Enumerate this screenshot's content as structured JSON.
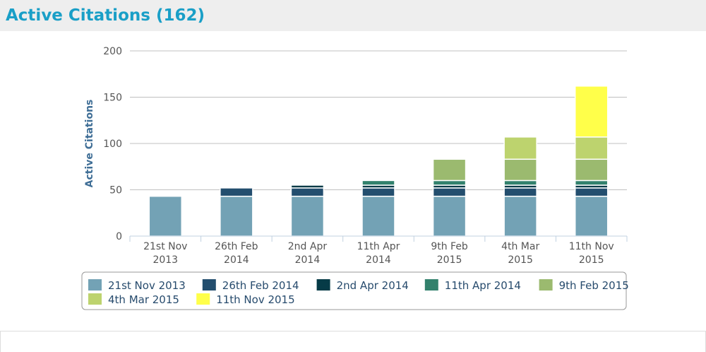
{
  "header": {
    "title": "Active Citations (162)"
  },
  "chart_data": {
    "type": "bar",
    "stacked": true,
    "ylabel": "Active Citations",
    "ylim": [
      0,
      200
    ],
    "yticks": [
      0,
      50,
      100,
      150,
      200
    ],
    "grid": true,
    "legend_position": "bottom",
    "categories": [
      [
        "21st Nov",
        "2013"
      ],
      [
        "26th Feb",
        "2014"
      ],
      [
        "2nd Apr",
        "2014"
      ],
      [
        "11th Apr",
        "2014"
      ],
      [
        "9th Feb",
        "2015"
      ],
      [
        "4th Mar",
        "2015"
      ],
      [
        "11th Nov",
        "2015"
      ]
    ],
    "series": [
      {
        "name": "21st Nov 2013",
        "color": "#73a2b5",
        "values": [
          43,
          43,
          43,
          43,
          43,
          43,
          43
        ]
      },
      {
        "name": "26th Feb 2014",
        "color": "#234e6e",
        "values": [
          0,
          9,
          9,
          9,
          9,
          9,
          9
        ]
      },
      {
        "name": "2nd Apr 2014",
        "color": "#063b47",
        "values": [
          0,
          0,
          3,
          3,
          3,
          3,
          3
        ]
      },
      {
        "name": "11th Apr 2014",
        "color": "#32816c",
        "values": [
          0,
          0,
          0,
          5,
          5,
          5,
          5
        ]
      },
      {
        "name": "9th Feb 2015",
        "color": "#9bba6f",
        "values": [
          0,
          0,
          0,
          0,
          23,
          23,
          23
        ]
      },
      {
        "name": "4th Mar 2015",
        "color": "#bdd36e",
        "values": [
          0,
          0,
          0,
          0,
          0,
          24,
          24
        ]
      },
      {
        "name": "11th Nov 2015",
        "color": "#ffff4a",
        "values": [
          0,
          0,
          0,
          0,
          0,
          0,
          55
        ]
      }
    ]
  }
}
